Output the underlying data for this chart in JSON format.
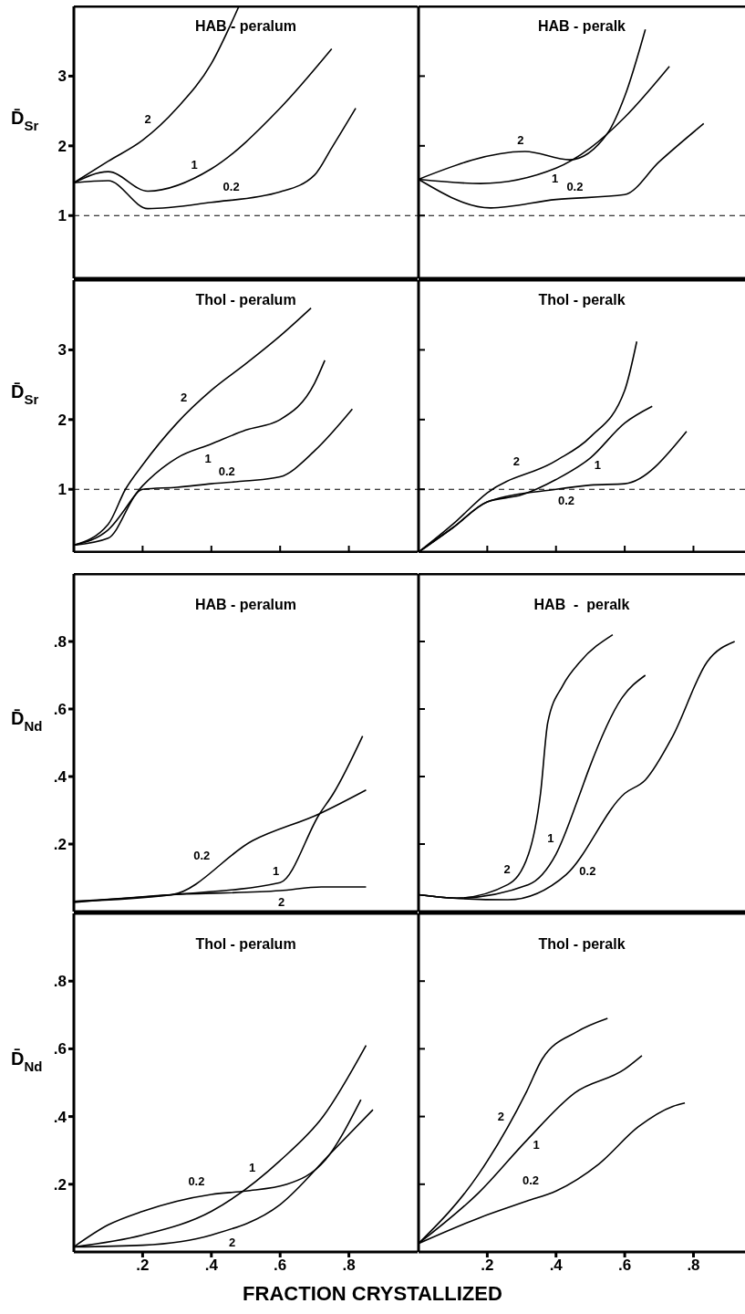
{
  "chart_data": [
    {
      "type": "line",
      "title": "HAB - peralum",
      "ylabel": "D̄$_{Sr}$",
      "xlim": [
        0,
        1
      ],
      "ylim": [
        0.1,
        4
      ],
      "yticks": [
        1,
        2,
        3
      ],
      "tick_labels": "y",
      "ref_lines": [
        {
          "axis": "y",
          "value": 1,
          "color": "#000000",
          "line_style": "dashed"
        }
      ],
      "series": [
        {
          "name": "2",
          "color": "#000000",
          "x": [
            0,
            0.1,
            0.2,
            0.3,
            0.4,
            0.48
          ],
          "values": [
            1.47,
            1.78,
            2.08,
            2.54,
            3.18,
            4.0
          ]
        },
        {
          "name": "1",
          "color": "#000000",
          "x": [
            0,
            0.1,
            0.215,
            0.4,
            0.6,
            0.75
          ],
          "values": [
            1.47,
            1.63,
            1.35,
            1.67,
            2.54,
            3.39
          ]
        },
        {
          "name": "0.2",
          "color": "#000000",
          "x": [
            0,
            0.1,
            0.215,
            0.4,
            0.6,
            0.7,
            0.75,
            0.82
          ],
          "values": [
            1.47,
            1.5,
            1.1,
            1.19,
            1.34,
            1.58,
            1.97,
            2.54
          ]
        }
      ]
    },
    {
      "type": "line",
      "title": "HAB - peralk",
      "xlim": [
        0,
        0.95
      ],
      "ylim": [
        0.1,
        4
      ],
      "yticks": [
        1,
        2,
        3
      ],
      "tick_labels": false,
      "ref_lines": [
        {
          "axis": "y",
          "value": 1,
          "color": "#000000",
          "line_style": "dashed"
        }
      ],
      "series": [
        {
          "name": "2",
          "color": "#000000",
          "x": [
            0,
            0.31,
            0.44,
            0.55,
            0.6,
            0.66
          ],
          "values": [
            1.52,
            1.92,
            1.8,
            2.18,
            2.71,
            3.67
          ]
        },
        {
          "name": "1",
          "color": "#000000",
          "x": [
            0,
            0.18,
            0.4,
            0.5,
            0.6,
            0.73
          ],
          "values": [
            1.52,
            1.46,
            1.68,
            1.97,
            2.41,
            3.14
          ]
        },
        {
          "name": "0.2",
          "color": "#000000",
          "x": [
            0,
            0.21,
            0.4,
            0.6,
            0.7,
            0.83
          ],
          "values": [
            1.52,
            1.11,
            1.23,
            1.3,
            1.77,
            2.32
          ]
        }
      ]
    },
    {
      "type": "line",
      "title": "Thol - peralum",
      "ylabel": "D̄$_{Sr}$",
      "xlim": [
        0,
        1
      ],
      "ylim": [
        0.1,
        4
      ],
      "xticks": [
        0.2,
        0.4,
        0.6,
        0.8
      ],
      "yticks": [
        1,
        2,
        3
      ],
      "tick_labels": "y",
      "ref_lines": [
        {
          "axis": "y",
          "value": 1,
          "color": "#000000",
          "line_style": "dashed"
        }
      ],
      "series": [
        {
          "name": "2",
          "color": "#000000",
          "x": [
            0,
            0.1,
            0.15,
            0.2,
            0.3,
            0.4,
            0.5,
            0.6,
            0.69
          ],
          "values": [
            0.2,
            0.5,
            1.0,
            1.35,
            1.95,
            2.42,
            2.8,
            3.2,
            3.6
          ]
        },
        {
          "name": "1",
          "color": "#000000",
          "x": [
            0,
            0.1,
            0.2,
            0.3,
            0.4,
            0.5,
            0.6,
            0.7,
            0.73
          ],
          "values": [
            0.2,
            0.42,
            1.05,
            1.45,
            1.65,
            1.85,
            2.0,
            2.52,
            2.85
          ]
        },
        {
          "name": "0.2",
          "color": "#000000",
          "x": [
            0,
            0.1,
            0.2,
            0.3,
            0.4,
            0.5,
            0.6,
            0.7,
            0.81
          ],
          "values": [
            0.2,
            0.3,
            1.0,
            1.03,
            1.08,
            1.12,
            1.18,
            1.55,
            2.15
          ]
        }
      ]
    },
    {
      "type": "line",
      "title": "Thol - peralk",
      "xlim": [
        0,
        0.95
      ],
      "ylim": [
        0.1,
        4
      ],
      "xticks": [
        0.2,
        0.4,
        0.6,
        0.8
      ],
      "yticks": [
        1,
        2,
        3
      ],
      "tick_labels": false,
      "ref_lines": [
        {
          "axis": "y",
          "value": 1,
          "color": "#000000",
          "line_style": "dashed"
        }
      ],
      "series": [
        {
          "name": "2",
          "color": "#000000",
          "x": [
            0,
            0.1,
            0.2,
            0.4,
            0.5,
            0.6,
            0.635
          ],
          "values": [
            0.1,
            0.5,
            0.95,
            1.41,
            1.75,
            2.42,
            3.12
          ]
        },
        {
          "name": "1",
          "color": "#000000",
          "x": [
            0,
            0.1,
            0.2,
            0.3,
            0.4,
            0.5,
            0.6,
            0.68
          ],
          "values": [
            0.1,
            0.45,
            0.82,
            0.92,
            1.14,
            1.45,
            1.95,
            2.19
          ]
        },
        {
          "name": "0.2",
          "color": "#000000",
          "x": [
            0,
            0.1,
            0.2,
            0.4,
            0.5,
            0.6,
            0.78
          ],
          "values": [
            0.1,
            0.45,
            0.82,
            1.0,
            1.06,
            1.08,
            1.83
          ]
        }
      ]
    },
    {
      "type": "line",
      "title": "HAB - peralum",
      "ylabel": "D̄$_{Nd}$",
      "xlim": [
        0,
        1
      ],
      "ylim": [
        0,
        1
      ],
      "yticks": [
        {
          "value": 0.2,
          "label": ".2"
        },
        {
          "value": 0.4,
          "label": ".4"
        },
        {
          "value": 0.6,
          "label": ".6"
        },
        {
          "value": 0.8,
          "label": ".8"
        }
      ],
      "tick_labels": "y",
      "series": [
        {
          "name": "0.2",
          "color": "#000000",
          "x": [
            0,
            0.285,
            0.52,
            0.715,
            0.85
          ],
          "values": [
            0.03,
            0.05,
            0.21,
            0.29,
            0.36
          ]
        },
        {
          "name": "1",
          "color": "#000000",
          "x": [
            0,
            0.285,
            0.6,
            0.715,
            0.755,
            0.84
          ],
          "values": [
            0.03,
            0.05,
            0.086,
            0.29,
            0.35,
            0.52
          ]
        },
        {
          "name": "2",
          "color": "#000000",
          "x": [
            0,
            0.285,
            0.6,
            0.72,
            0.85
          ],
          "values": [
            0.027,
            0.05,
            0.062,
            0.073,
            0.073
          ]
        }
      ]
    },
    {
      "type": "line",
      "title": "HAB  -  peralk",
      "xlim": [
        0,
        0.95
      ],
      "ylim": [
        0,
        1
      ],
      "yticks": [
        0.2,
        0.4,
        0.6,
        0.8
      ],
      "tick_labels": false,
      "series": [
        {
          "name": "2",
          "color": "#000000",
          "x": [
            0,
            0.11,
            0.26,
            0.32,
            0.355,
            0.376,
            0.42,
            0.47,
            0.565
          ],
          "values": [
            0.05,
            0.04,
            0.08,
            0.17,
            0.35,
            0.56,
            0.67,
            0.74,
            0.82
          ]
        },
        {
          "name": "1",
          "color": "#000000",
          "x": [
            0,
            0.11,
            0.32,
            0.4,
            0.47,
            0.495,
            0.59,
            0.66
          ],
          "values": [
            0.05,
            0.04,
            0.08,
            0.17,
            0.35,
            0.42,
            0.63,
            0.7
          ]
        },
        {
          "name": "0.2",
          "color": "#000000",
          "x": [
            0,
            0.1,
            0.26,
            0.43,
            0.6,
            0.66,
            0.74,
            0.84,
            0.92
          ],
          "values": [
            0.05,
            0.04,
            0.035,
            0.11,
            0.35,
            0.39,
            0.52,
            0.74,
            0.8
          ]
        }
      ]
    },
    {
      "type": "line",
      "title": "Thol - peralum",
      "ylabel": "D̄$_{Nd}$",
      "xlabel": "FRACTION CRYSTALLIZED",
      "xlim": [
        0,
        1
      ],
      "ylim": [
        0,
        1
      ],
      "xticks": [
        {
          "value": 0.2,
          "label": ".2"
        },
        {
          "value": 0.4,
          "label": ".4"
        },
        {
          "value": 0.6,
          "label": ".6"
        },
        {
          "value": 0.8,
          "label": ".8"
        }
      ],
      "yticks": [
        {
          "value": 0.2,
          "label": ".2"
        },
        {
          "value": 0.4,
          "label": ".4"
        },
        {
          "value": 0.6,
          "label": ".6"
        },
        {
          "value": 0.8,
          "label": ".8"
        }
      ],
      "series": [
        {
          "name": "1",
          "color": "#000000",
          "x": [
            0,
            0.2,
            0.4,
            0.6,
            0.725,
            0.85
          ],
          "values": [
            0.015,
            0.05,
            0.12,
            0.27,
            0.4,
            0.61
          ]
        },
        {
          "name": "2",
          "color": "#000000",
          "x": [
            0,
            0.2,
            0.4,
            0.6,
            0.755,
            0.87
          ],
          "values": [
            0.015,
            0.02,
            0.05,
            0.14,
            0.3,
            0.42
          ]
        },
        {
          "name": "0.2",
          "color": "#000000",
          "x": [
            0,
            0.1,
            0.2,
            0.4,
            0.5,
            0.62,
            0.73,
            0.835
          ],
          "values": [
            0.015,
            0.08,
            0.12,
            0.17,
            0.18,
            0.2,
            0.27,
            0.45
          ]
        }
      ]
    },
    {
      "type": "line",
      "title": "Thol - peralk",
      "xlim": [
        0,
        0.95
      ],
      "ylim": [
        0,
        1
      ],
      "xticks": [
        {
          "value": 0.2,
          "label": ".2"
        },
        {
          "value": 0.4,
          "label": ".4"
        },
        {
          "value": 0.6,
          "label": ".6"
        },
        {
          "value": 0.8,
          "label": ".8"
        }
      ],
      "yticks": [
        0.2,
        0.4,
        0.6,
        0.8
      ],
      "tick_labels": "x",
      "series": [
        {
          "name": "2",
          "color": "#000000",
          "x": [
            0,
            0.175,
            0.315,
            0.36,
            0.46,
            0.55
          ],
          "values": [
            0.025,
            0.23,
            0.475,
            0.57,
            0.65,
            0.69
          ]
        },
        {
          "name": "1",
          "color": "#000000",
          "x": [
            0,
            0.175,
            0.315,
            0.455,
            0.6,
            0.65
          ],
          "values": [
            0.025,
            0.175,
            0.33,
            0.47,
            0.54,
            0.58
          ]
        },
        {
          "name": "0.2",
          "color": "#000000",
          "x": [
            0,
            0.175,
            0.315,
            0.4,
            0.525,
            0.64,
            0.74,
            0.775
          ],
          "values": [
            0.025,
            0.1,
            0.15,
            0.18,
            0.26,
            0.37,
            0.43,
            0.44
          ]
        }
      ]
    }
  ]
}
